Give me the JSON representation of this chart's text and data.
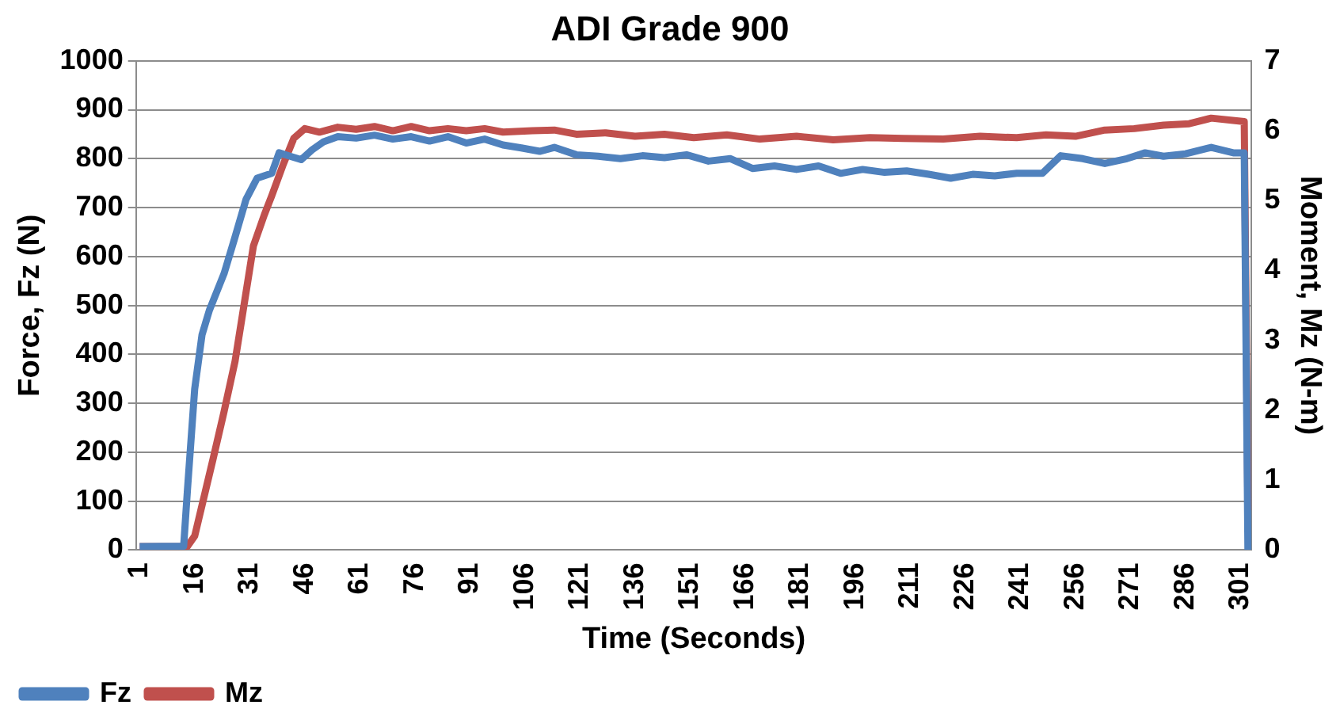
{
  "chart_data": {
    "type": "line",
    "title": "ADI Grade 900",
    "xlabel": "Time (Seconds)",
    "ylabel": "Force, Fz (N)",
    "y2label": "Moment, Mz (N-m)",
    "xlim": [
      0,
      304
    ],
    "xticks": [
      1,
      16,
      31,
      46,
      61,
      76,
      91,
      106,
      121,
      136,
      151,
      166,
      181,
      196,
      211,
      226,
      241,
      256,
      271,
      286,
      301
    ],
    "ylim": [
      0,
      1000
    ],
    "yticks": [
      0,
      100,
      200,
      300,
      400,
      500,
      600,
      700,
      800,
      900,
      1000
    ],
    "y2lim": [
      0,
      7
    ],
    "y2ticks": [
      0,
      1,
      2,
      3,
      4,
      5,
      6,
      7
    ],
    "grid": "y",
    "legend": "bottom left",
    "marker": "none",
    "line_style": "solid",
    "series": [
      {
        "name": "Fz",
        "color": "#4f81bd",
        "x": [
          1,
          13,
          14,
          16,
          18,
          20,
          24,
          27,
          30,
          33,
          37,
          39,
          42,
          45,
          48,
          51,
          55,
          60,
          65,
          70,
          75,
          80,
          85,
          90,
          95,
          100,
          105,
          110,
          114,
          120,
          126,
          132,
          138,
          144,
          150,
          156,
          162,
          168,
          174,
          180,
          186,
          192,
          198,
          204,
          210,
          216,
          222,
          228,
          234,
          240,
          247,
          252,
          258,
          264,
          270,
          275,
          280,
          286,
          293,
          299,
          302,
          303
        ],
        "values": [
          7,
          8,
          120,
          329,
          440,
          490,
          565,
          640,
          717,
          760,
          770,
          812,
          805,
          798,
          818,
          834,
          845,
          842,
          848,
          840,
          845,
          836,
          845,
          832,
          840,
          828,
          822,
          815,
          823,
          808,
          805,
          800,
          806,
          802,
          808,
          795,
          800,
          780,
          785,
          778,
          785,
          770,
          778,
          772,
          775,
          768,
          760,
          768,
          765,
          770,
          770,
          806,
          800,
          790,
          800,
          812,
          805,
          810,
          823,
          812,
          812,
          0
        ]
      },
      {
        "name": "Mz",
        "color": "#c0504d",
        "axis": "y2",
        "x": [
          1,
          14,
          16,
          18,
          21,
          24,
          27,
          29,
          32,
          35,
          37,
          40,
          43,
          46,
          50,
          55,
          60,
          65,
          70,
          75,
          80,
          85,
          90,
          95,
          100,
          108,
          114,
          120,
          128,
          136,
          144,
          152,
          161,
          170,
          180,
          190,
          200,
          209,
          220,
          230,
          240,
          248,
          256,
          264,
          272,
          280,
          287,
          293,
          302,
          303
        ],
        "values": [
          0.05,
          0.05,
          0.2,
          0.64,
          1.3,
          1.98,
          2.7,
          3.36,
          4.35,
          4.8,
          5.07,
          5.5,
          5.89,
          6.03,
          5.98,
          6.05,
          6.02,
          6.06,
          6.0,
          6.06,
          6.0,
          6.03,
          6.0,
          6.03,
          5.98,
          6.0,
          6.01,
          5.95,
          5.97,
          5.92,
          5.95,
          5.9,
          5.94,
          5.88,
          5.92,
          5.87,
          5.9,
          5.89,
          5.88,
          5.92,
          5.9,
          5.94,
          5.92,
          6.01,
          6.03,
          6.08,
          6.1,
          6.18,
          6.13,
          0.57
        ]
      }
    ]
  }
}
